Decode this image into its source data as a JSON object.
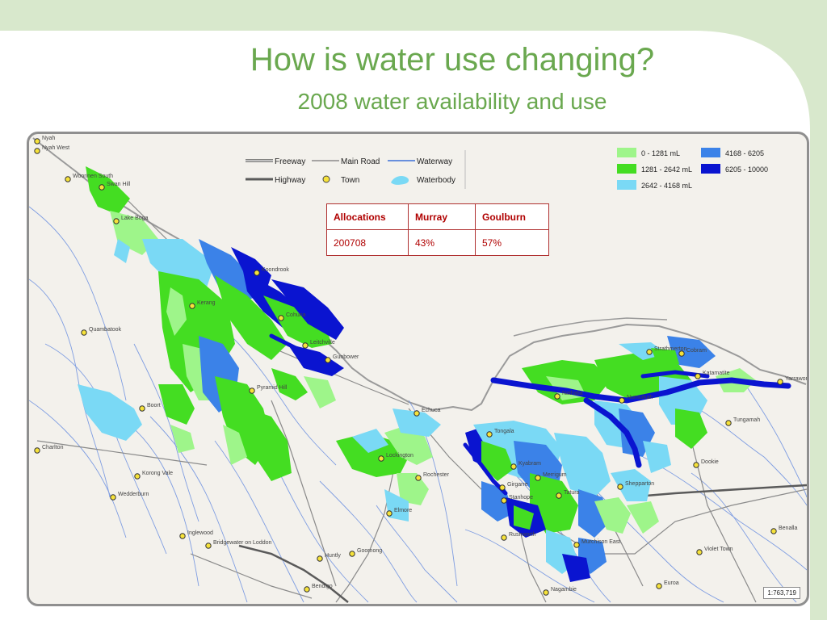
{
  "title": {
    "main": "How is water use changing?",
    "sub": "2008 water availability and use"
  },
  "colors": {
    "accent_green": "#6aa84f",
    "band_1": "#9ef58a",
    "band_2": "#44dd22",
    "band_3": "#7ad9f5",
    "band_4": "#3b82e8",
    "band_5": "#0a14d0",
    "table_border": "#b03030"
  },
  "line_legend": {
    "freeway": "Freeway",
    "main_road": "Main Road",
    "waterway": "Waterway",
    "highway": "Highway",
    "town": "Town",
    "waterbody": "Waterbody"
  },
  "volume_legend": [
    {
      "label": "0 - 1281 mL",
      "color": "#9ef58a"
    },
    {
      "label": "1281 - 2642 mL",
      "color": "#44dd22"
    },
    {
      "label": "2642 - 4168 mL",
      "color": "#7ad9f5"
    },
    {
      "label": "4168 - 6205",
      "color": "#3b82e8"
    },
    {
      "label": "6205 - 10000",
      "color": "#0a14d0"
    }
  ],
  "table": {
    "headers": [
      "Allocations",
      "Murray",
      "Goulburn"
    ],
    "row": [
      "200708",
      "43%",
      "57%"
    ]
  },
  "scale": "1:763,719",
  "towns": [
    {
      "name": "Nyah"
    },
    {
      "name": "Nyah West"
    },
    {
      "name": "Woorinen South"
    },
    {
      "name": "Swan Hill"
    },
    {
      "name": "Lake Boga"
    },
    {
      "name": "Koondrook"
    },
    {
      "name": "Kerang"
    },
    {
      "name": "Cohuna"
    },
    {
      "name": "Quambatook"
    },
    {
      "name": "Leitchville"
    },
    {
      "name": "Gunbower"
    },
    {
      "name": "Pyramid Hill"
    },
    {
      "name": "Boort"
    },
    {
      "name": "Echuca"
    },
    {
      "name": "Charlton"
    },
    {
      "name": "Korong Vale"
    },
    {
      "name": "Wedderburn"
    },
    {
      "name": "Lockington"
    },
    {
      "name": "Rochester"
    },
    {
      "name": "Elmore"
    },
    {
      "name": "Inglewood"
    },
    {
      "name": "Bridgewater on Loddon"
    },
    {
      "name": "Goornong"
    },
    {
      "name": "Huntly"
    },
    {
      "name": "Bendigo"
    },
    {
      "name": "Tongala"
    },
    {
      "name": "Kyabram"
    },
    {
      "name": "Merrigum"
    },
    {
      "name": "Girgarre"
    },
    {
      "name": "Stanhope"
    },
    {
      "name": "Tatura"
    },
    {
      "name": "Rushworth"
    },
    {
      "name": "Murchison East"
    },
    {
      "name": "Nagambie"
    },
    {
      "name": "Shepparton"
    },
    {
      "name": "Nathalia"
    },
    {
      "name": "Numurkah"
    },
    {
      "name": "Strathmerton"
    },
    {
      "name": "Cobram"
    },
    {
      "name": "Katamatite"
    },
    {
      "name": "Yarrawonga"
    },
    {
      "name": "Tungamah"
    },
    {
      "name": "Dookie"
    },
    {
      "name": "Benalla"
    },
    {
      "name": "Violet Town"
    },
    {
      "name": "Euroa"
    }
  ]
}
